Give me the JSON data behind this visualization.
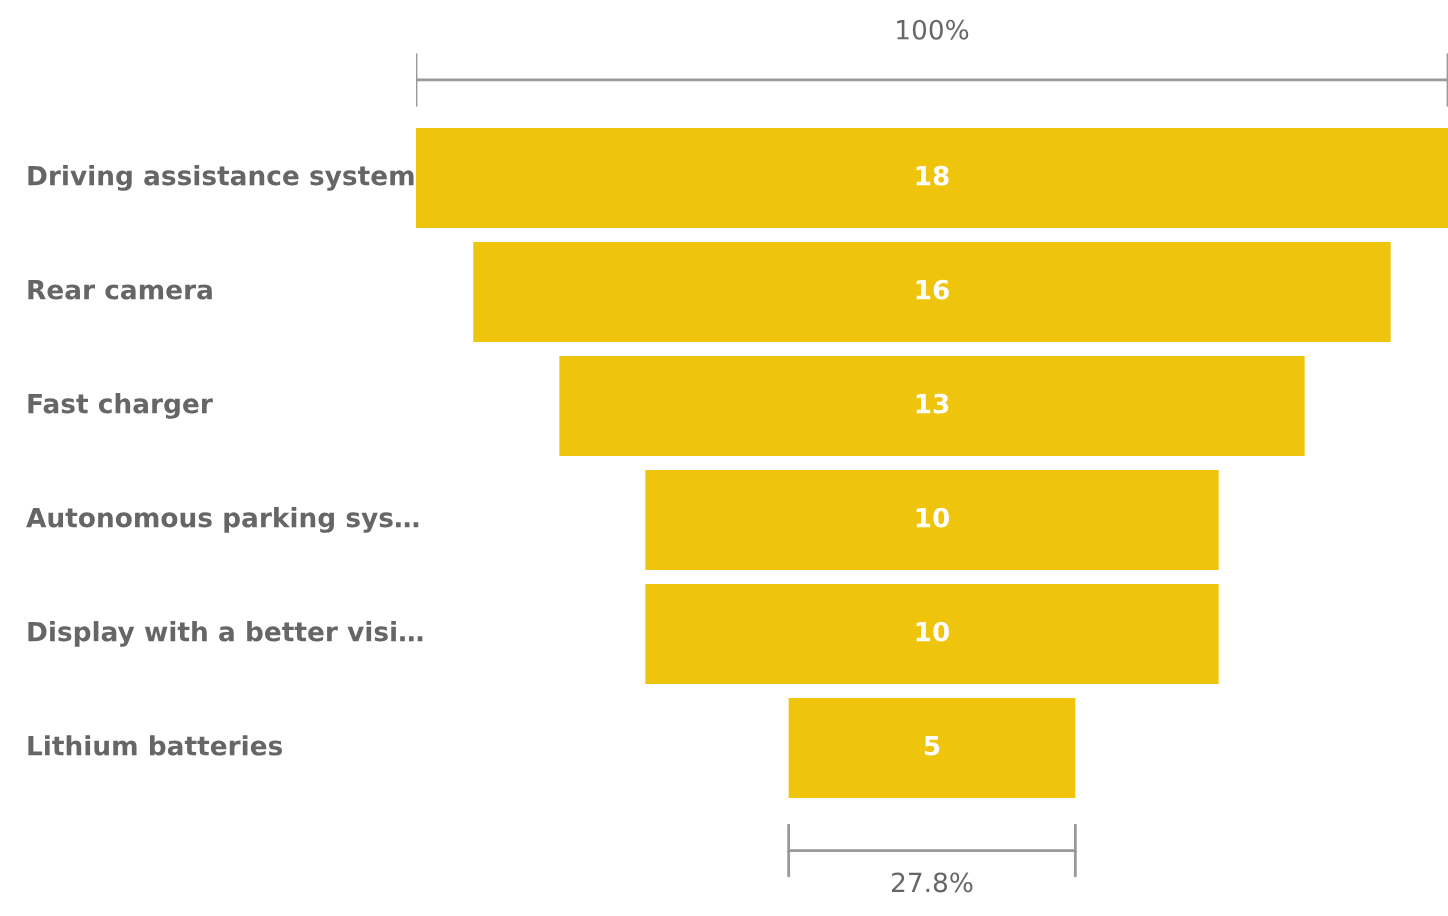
{
  "chart_data": {
    "type": "other",
    "categories": [
      "Driving assistance system",
      "Rear camera",
      "Fast charger",
      "Autonomous parking sys…",
      "Display with a better visi…",
      "Lithium batteries"
    ],
    "values": [
      18,
      16,
      13,
      10,
      10,
      5
    ],
    "color": "#efc40c",
    "data_labels": true,
    "annotations": [
      "100%",
      "27.8%"
    ]
  }
}
